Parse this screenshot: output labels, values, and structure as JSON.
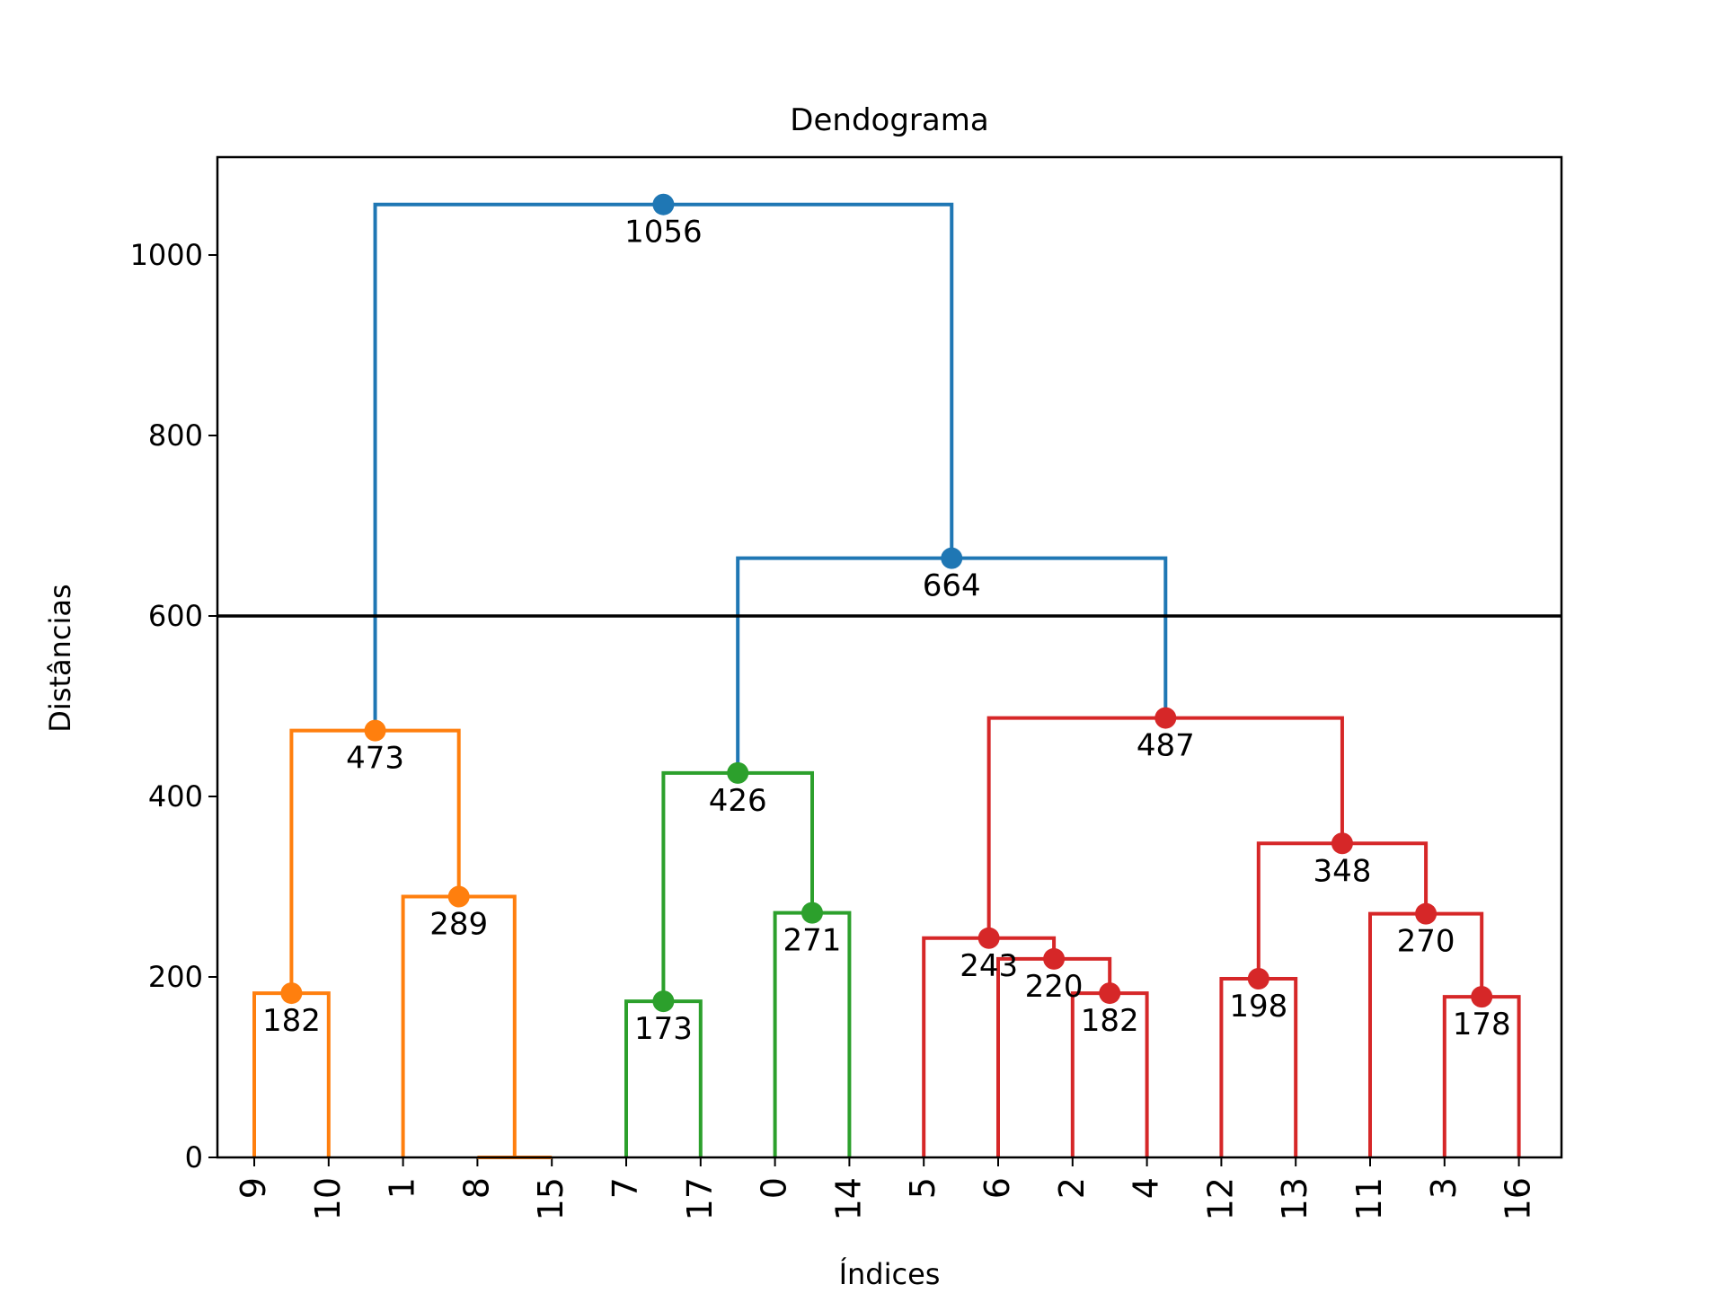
{
  "chart_data": {
    "type": "dendrogram",
    "title": "Dendograma",
    "xlabel": "Índices",
    "ylabel": "Distâncias",
    "ylim": [
      0,
      1110
    ],
    "yticks": [
      0,
      200,
      400,
      600,
      800,
      1000
    ],
    "leaves": [
      "9",
      "10",
      "1",
      "8",
      "15",
      "7",
      "17",
      "0",
      "14",
      "5",
      "6",
      "2",
      "4",
      "12",
      "13",
      "11",
      "3",
      "16"
    ],
    "threshold": 600,
    "colors": {
      "orange": "#ff7f0e",
      "green": "#2ca02c",
      "red": "#d62728",
      "blue": "#1f77b4",
      "threshold": "#000000"
    },
    "merges": [
      {
        "label": "182",
        "height": 182,
        "left": 0,
        "right": 1,
        "color": "orange"
      },
      {
        "label": "",
        "height": 0,
        "left": 3,
        "right": 4,
        "color": "orange"
      },
      {
        "label": "289",
        "height": 289,
        "left": 2,
        "right": "m1",
        "color": "orange"
      },
      {
        "label": "473",
        "height": 473,
        "left": "m0",
        "right": "m2",
        "color": "orange"
      },
      {
        "label": "173",
        "height": 173,
        "left": 5,
        "right": 6,
        "color": "green"
      },
      {
        "label": "271",
        "height": 271,
        "left": 7,
        "right": 8,
        "color": "green"
      },
      {
        "label": "426",
        "height": 426,
        "left": "m4",
        "right": "m5",
        "color": "green"
      },
      {
        "label": "182",
        "height": 182,
        "left": 11,
        "right": 12,
        "color": "red"
      },
      {
        "label": "220",
        "height": 220,
        "left": 10,
        "right": "m7",
        "color": "red"
      },
      {
        "label": "243",
        "height": 243,
        "left": 9,
        "right": "m8",
        "color": "red"
      },
      {
        "label": "198",
        "height": 198,
        "left": 13,
        "right": 14,
        "color": "red"
      },
      {
        "label": "178",
        "height": 178,
        "left": 16,
        "right": 17,
        "color": "red"
      },
      {
        "label": "270",
        "height": 270,
        "left": 15,
        "right": "m11",
        "color": "red"
      },
      {
        "label": "348",
        "height": 348,
        "left": "m10",
        "right": "m12",
        "color": "red"
      },
      {
        "label": "487",
        "height": 487,
        "left": "m9",
        "right": "m13",
        "color": "red"
      },
      {
        "label": "664",
        "height": 664,
        "left": "m6",
        "right": "m14",
        "color": "blue"
      },
      {
        "label": "1056",
        "height": 1056,
        "left": "m3",
        "right": "m15",
        "color": "blue"
      }
    ]
  }
}
